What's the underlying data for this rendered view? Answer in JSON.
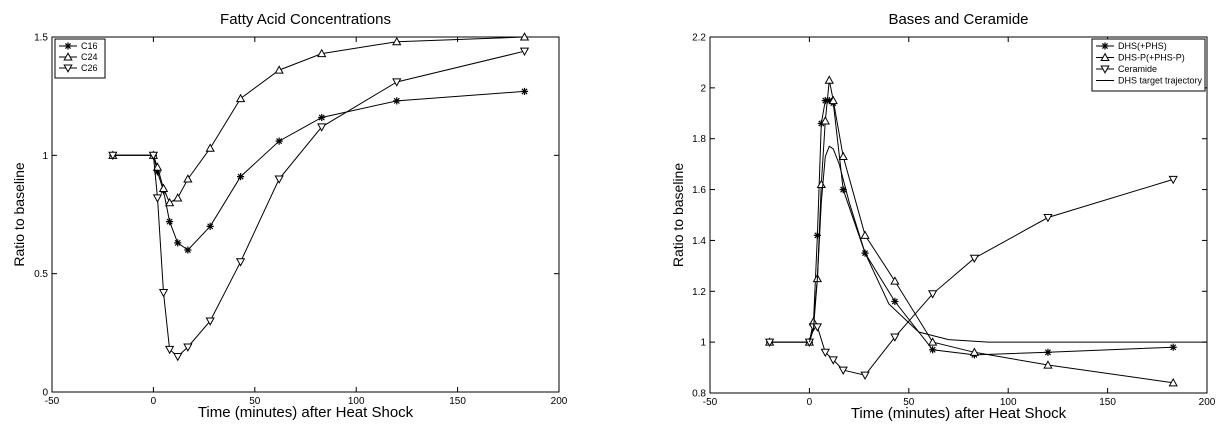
{
  "chart_data": [
    {
      "type": "line",
      "title": "Fatty Acid Concentrations",
      "xlabel": "Time (minutes) after Heat Shock",
      "ylabel": "Ratio to baseline",
      "xlim": [
        -50,
        200
      ],
      "ylim": [
        0,
        1.5
      ],
      "xticks": [
        "-50",
        "0",
        "50",
        "100",
        "150",
        "200"
      ],
      "yticks": [
        "0",
        "0.5",
        "1",
        "1.5"
      ],
      "xtick_values": [
        -50,
        0,
        50,
        100,
        150,
        200
      ],
      "ytick_values": [
        0,
        0.5,
        1,
        1.5
      ],
      "legend_position": "top-left",
      "grid": false,
      "series": [
        {
          "name": "C16",
          "marker": "star",
          "x": [
            -20,
            0,
            2,
            5,
            8,
            12,
            17,
            28,
            43,
            62,
            83,
            120,
            183
          ],
          "y": [
            1.0,
            1.0,
            0.93,
            0.85,
            0.72,
            0.63,
            0.6,
            0.7,
            0.91,
            1.06,
            1.16,
            1.23,
            1.27
          ]
        },
        {
          "name": "C24",
          "marker": "triangle-up",
          "x": [
            -20,
            0,
            2,
            5,
            8,
            12,
            17,
            28,
            43,
            62,
            83,
            120,
            183
          ],
          "y": [
            1.0,
            1.0,
            0.95,
            0.86,
            0.8,
            0.82,
            0.9,
            1.03,
            1.24,
            1.36,
            1.43,
            1.48,
            1.5
          ]
        },
        {
          "name": "C26",
          "marker": "triangle-down",
          "x": [
            -20,
            0,
            2,
            5,
            8,
            12,
            17,
            28,
            43,
            62,
            83,
            120,
            183
          ],
          "y": [
            1.0,
            1.0,
            0.82,
            0.42,
            0.18,
            0.15,
            0.19,
            0.3,
            0.55,
            0.9,
            1.12,
            1.31,
            1.44
          ]
        }
      ]
    },
    {
      "type": "line",
      "title": "Bases and Ceramide",
      "xlabel": "Time (minutes) after Heat Shock",
      "ylabel": "Ratio to baseline",
      "xlim": [
        -50,
        200
      ],
      "ylim": [
        0.8,
        2.2
      ],
      "xticks": [
        "-50",
        "0",
        "50",
        "100",
        "150",
        "200"
      ],
      "yticks": [
        "0.8",
        "1",
        "1.2",
        "1.4",
        "1.6",
        "1.8",
        "2",
        "2.2"
      ],
      "xtick_values": [
        -50,
        0,
        50,
        100,
        150,
        200
      ],
      "ytick_values": [
        0.8,
        1.0,
        1.2,
        1.4,
        1.6,
        1.8,
        2.0,
        2.2
      ],
      "legend_position": "top-right",
      "grid": false,
      "series": [
        {
          "name": "DHS(+PHS)",
          "marker": "star",
          "x": [
            -20,
            0,
            2,
            4,
            6,
            8,
            10,
            12,
            17,
            28,
            43,
            62,
            83,
            120,
            183
          ],
          "y": [
            1.0,
            1.0,
            1.07,
            1.42,
            1.86,
            1.95,
            1.95,
            1.94,
            1.6,
            1.35,
            1.16,
            0.97,
            0.95,
            0.96,
            0.98
          ]
        },
        {
          "name": "DHS-P(+PHS-P)",
          "marker": "triangle-up",
          "x": [
            -20,
            0,
            2,
            4,
            6,
            8,
            10,
            12,
            17,
            28,
            43,
            62,
            83,
            120,
            183
          ],
          "y": [
            1.0,
            1.0,
            1.08,
            1.25,
            1.62,
            1.87,
            2.03,
            1.95,
            1.73,
            1.42,
            1.24,
            1.0,
            0.96,
            0.91,
            0.84
          ]
        },
        {
          "name": "Ceramide",
          "marker": "triangle-down",
          "x": [
            -20,
            0,
            2,
            4,
            8,
            12,
            17,
            28,
            43,
            62,
            83,
            120,
            183
          ],
          "y": [
            1.0,
            1.0,
            1.06,
            1.06,
            0.96,
            0.93,
            0.89,
            0.87,
            1.02,
            1.19,
            1.33,
            1.49,
            1.64
          ]
        },
        {
          "name": "DHS target trajectory",
          "marker": "none",
          "x": [
            0,
            2,
            4,
            6,
            8,
            10,
            12,
            15,
            20,
            28,
            40,
            55,
            70,
            90,
            120,
            160,
            200
          ],
          "y": [
            1.0,
            1.05,
            1.25,
            1.55,
            1.73,
            1.77,
            1.76,
            1.7,
            1.55,
            1.35,
            1.15,
            1.04,
            1.01,
            1.0,
            1.0,
            1.0,
            1.0
          ]
        }
      ]
    }
  ]
}
